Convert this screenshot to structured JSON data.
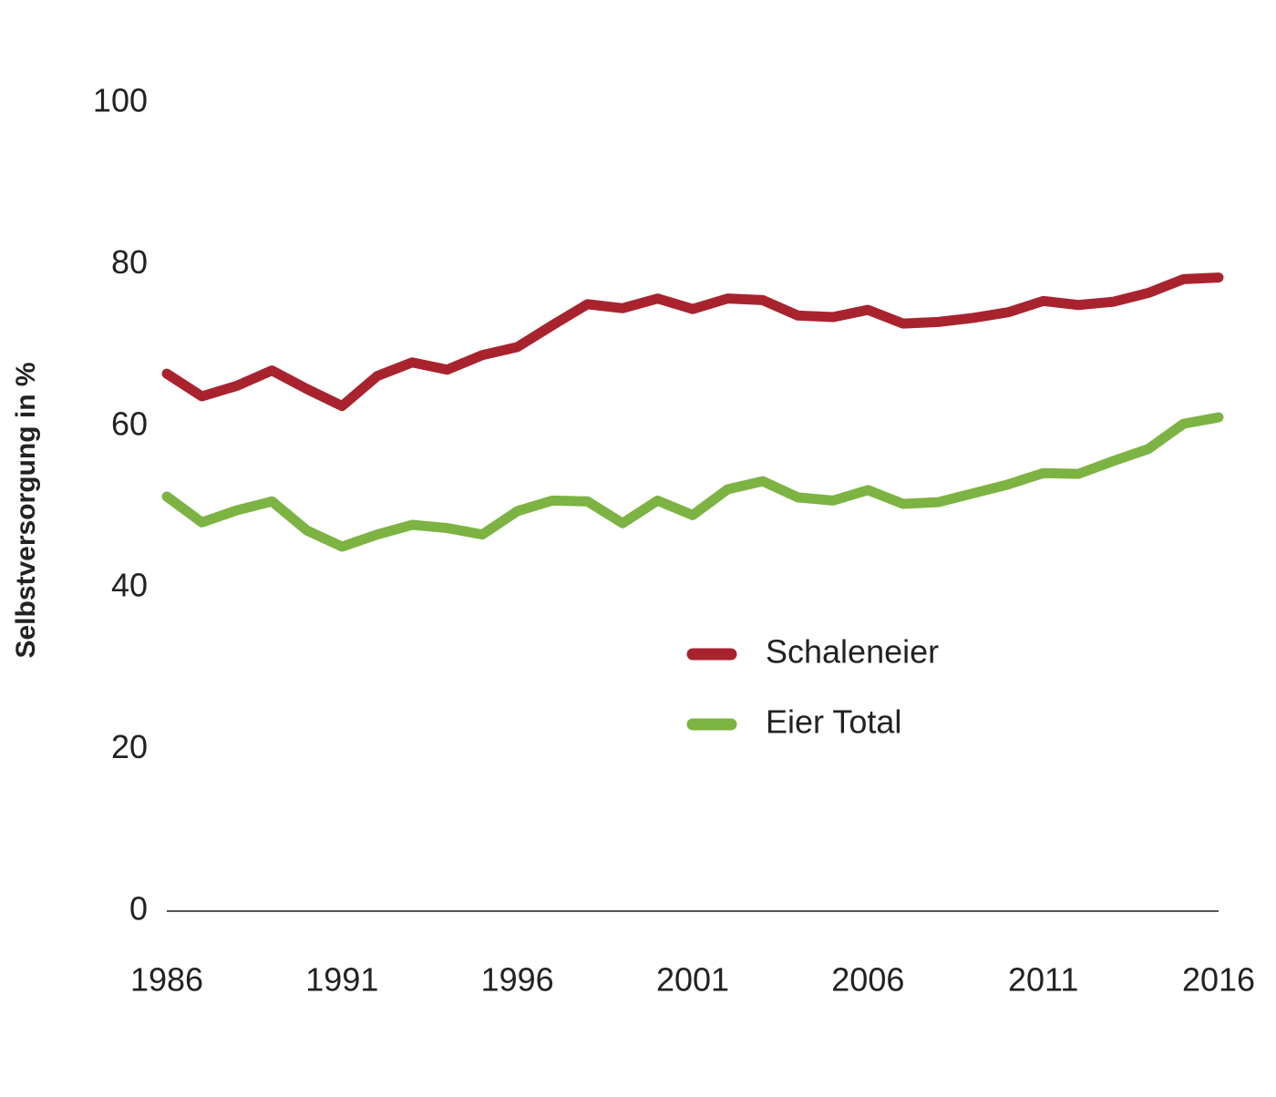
{
  "chart_data": {
    "type": "line",
    "y_label": "Selbstversorgung in %",
    "x": [
      1986,
      1987,
      1988,
      1989,
      1990,
      1991,
      1992,
      1993,
      1994,
      1995,
      1996,
      1997,
      1998,
      1999,
      2000,
      2001,
      2002,
      2003,
      2004,
      2005,
      2006,
      2007,
      2008,
      2009,
      2010,
      2011,
      2012,
      2013,
      2014,
      2015,
      2016
    ],
    "series": [
      {
        "name": "Schaleneier",
        "color": "#a8232e",
        "values": [
          66.5,
          63.7,
          65,
          66.9,
          64.6,
          62.5,
          66.2,
          67.9,
          67,
          68.8,
          69.8,
          72.5,
          75.1,
          74.6,
          75.8,
          74.5,
          75.8,
          75.6,
          73.7,
          73.5,
          74.4,
          72.7,
          72.9,
          73.4,
          74.1,
          75.5,
          75,
          75.4,
          76.5,
          78.2,
          78.4
        ]
      },
      {
        "name": "Eier Total",
        "color": "#7cb342",
        "values": [
          51.3,
          48.1,
          49.6,
          50.7,
          47.1,
          45.1,
          46.6,
          47.8,
          47.4,
          46.6,
          49.5,
          50.8,
          50.7,
          48,
          50.8,
          49,
          52.2,
          53.2,
          51.2,
          50.8,
          52.1,
          50.4,
          50.6,
          51.7,
          52.8,
          54.2,
          54.1,
          55.7,
          57.2,
          60.3,
          61.1
        ]
      }
    ],
    "xlim": [
      1986,
      2016
    ],
    "xticks": [
      1986,
      1991,
      1996,
      2001,
      2006,
      2011,
      2016
    ],
    "ylim": [
      0,
      100
    ],
    "yticks": [
      0,
      20,
      40,
      60,
      80,
      100
    ],
    "grid": false
  }
}
